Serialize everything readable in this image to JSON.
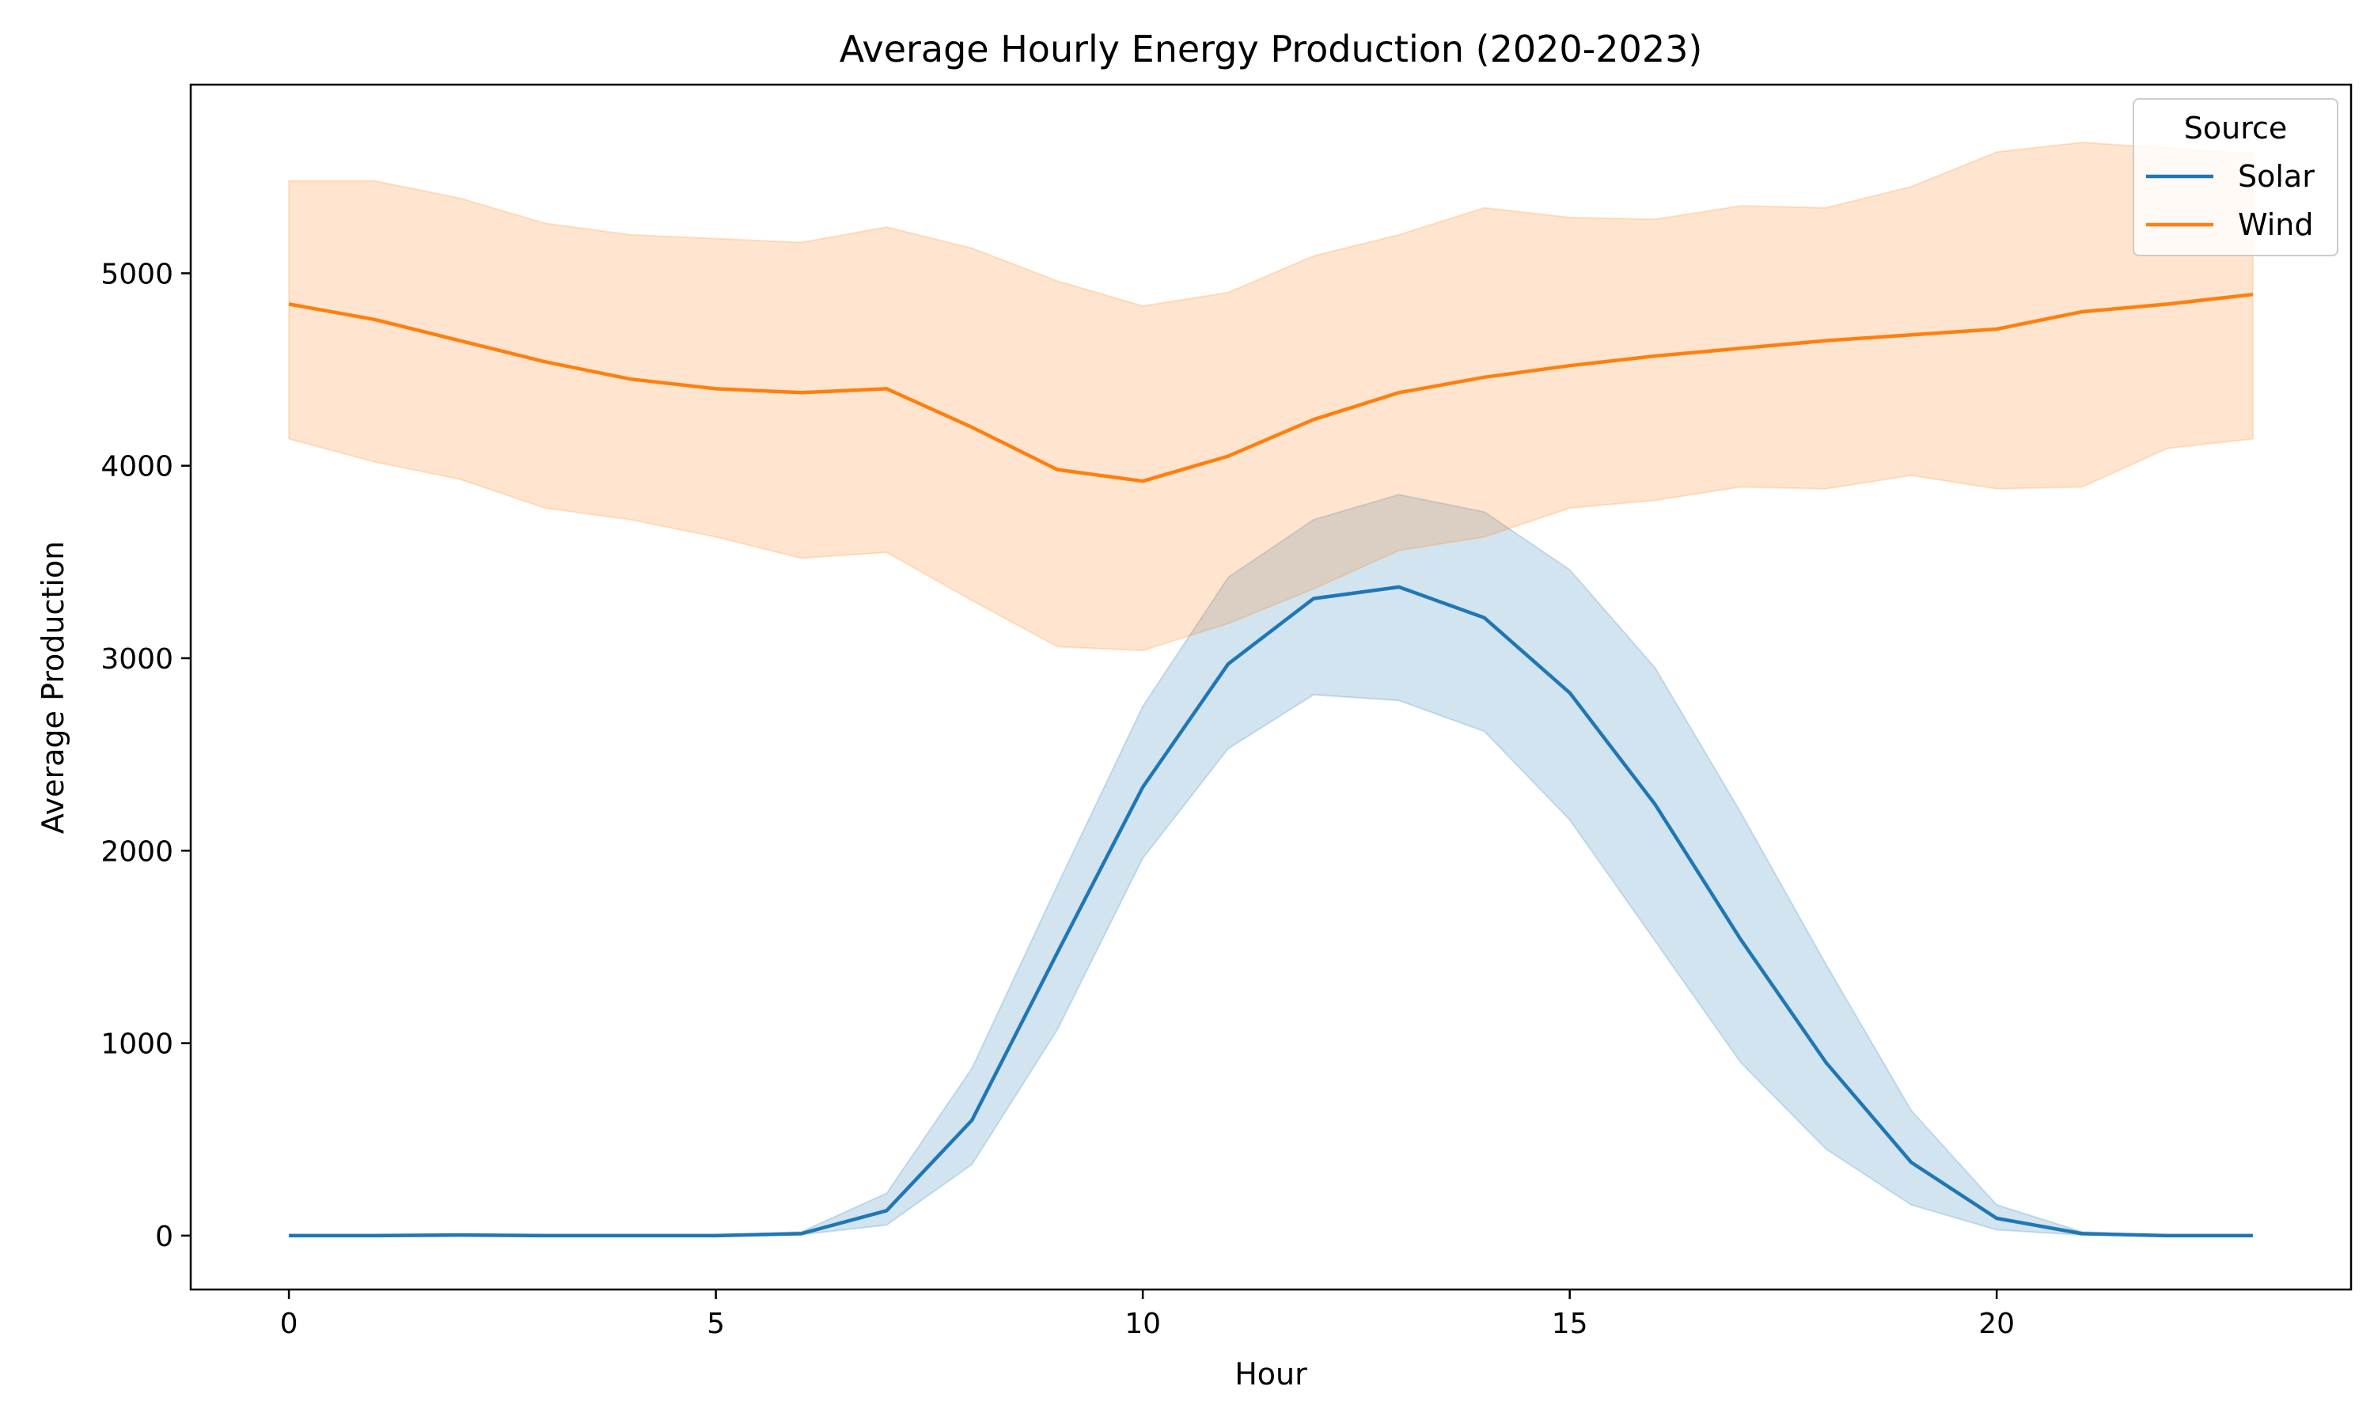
{
  "chart_data": {
    "type": "line",
    "title": "Average Hourly Energy Production (2020-2023)",
    "xlabel": "Hour",
    "ylabel": "Average Production",
    "xlim": [
      -1.15,
      24.15
    ],
    "ylim": [
      -280,
      5980
    ],
    "xticks": [
      0,
      5,
      10,
      15,
      20
    ],
    "yticks": [
      0,
      1000,
      2000,
      3000,
      4000,
      5000
    ],
    "grid": false,
    "legend": {
      "title": "Source",
      "position": "top-right"
    },
    "x": [
      0,
      1,
      2,
      3,
      4,
      5,
      6,
      7,
      8,
      9,
      10,
      11,
      12,
      13,
      14,
      15,
      16,
      17,
      18,
      19,
      20,
      21,
      22,
      23
    ],
    "series": [
      {
        "name": "Solar",
        "color": "#1f77b4",
        "values": [
          0,
          0,
          3,
          0,
          0,
          0,
          10,
          130,
          600,
          1470,
          2330,
          2970,
          3310,
          3370,
          3210,
          2820,
          2240,
          1540,
          900,
          380,
          90,
          10,
          0,
          0
        ],
        "lower": [
          0,
          0,
          0,
          0,
          0,
          0,
          5,
          55,
          370,
          1070,
          1960,
          2530,
          2810,
          2780,
          2620,
          2160,
          1530,
          900,
          450,
          160,
          30,
          3,
          0,
          0
        ],
        "upper": [
          0,
          0,
          6,
          0,
          0,
          0,
          20,
          220,
          870,
          1820,
          2750,
          3420,
          3720,
          3850,
          3760,
          3460,
          2950,
          2200,
          1410,
          650,
          160,
          20,
          0,
          0
        ]
      },
      {
        "name": "Wind",
        "color": "#ff7f0e",
        "values": [
          4840,
          4760,
          4650,
          4540,
          4450,
          4400,
          4380,
          4400,
          4200,
          3980,
          3920,
          4050,
          4240,
          4380,
          4460,
          4520,
          4570,
          4610,
          4650,
          4680,
          4710,
          4800,
          4840,
          4890
        ],
        "lower": [
          4140,
          4020,
          3930,
          3780,
          3720,
          3630,
          3520,
          3550,
          3300,
          3060,
          3040,
          3180,
          3360,
          3560,
          3630,
          3780,
          3820,
          3890,
          3880,
          3950,
          3880,
          3890,
          4090,
          4140
        ],
        "upper": [
          5480,
          5480,
          5390,
          5260,
          5200,
          5180,
          5160,
          5240,
          5130,
          4960,
          4830,
          4900,
          5090,
          5200,
          5340,
          5290,
          5280,
          5350,
          5340,
          5450,
          5630,
          5680,
          5650,
          5620
        ]
      }
    ]
  }
}
